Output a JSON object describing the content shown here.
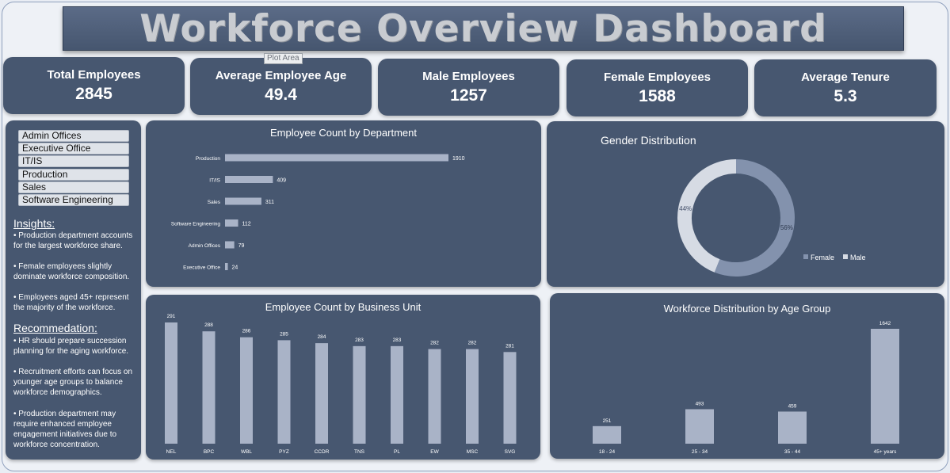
{
  "title": "Workforce Overview Dashboard",
  "tooltip": "Plot Area",
  "kpis": [
    {
      "label": "Total Employees",
      "value": "2845"
    },
    {
      "label": "Average Employee Age",
      "value": "49.4"
    },
    {
      "label": "Male Employees",
      "value": "1257"
    },
    {
      "label": "Female Employees",
      "value": "1588"
    },
    {
      "label": "Average Tenure",
      "value": "5.3"
    }
  ],
  "slicer": {
    "items": [
      "Admin Offices",
      "Executive Office",
      "IT/IS",
      "Production",
      "Sales",
      "Software Engineering"
    ]
  },
  "insights": {
    "heading": "Insights:",
    "bullets": [
      "• Production department accounts for the largest workforce share.",
      "• Female employees slightly dominate workforce composition.",
      "• Employees aged 45+ represent the majority of the workforce."
    ]
  },
  "recommendation": {
    "heading": "Recommedation:",
    "bullets": [
      "• HR should prepare succession planning for the aging workforce.",
      "• Recruitment efforts can focus on younger age groups to balance workforce demographics.",
      "• Production department may require enhanced employee engagement initiatives due to workforce concentration."
    ]
  },
  "colors": {
    "panel": "#475770",
    "bar": "#a9b3c7",
    "female": "#8392ad",
    "male": "#d6dbe4"
  },
  "chart_data": [
    {
      "type": "bar",
      "orientation": "horizontal",
      "title": "Employee Count by Department",
      "categories": [
        "Production",
        "IT/IS",
        "Sales",
        "Software Engineering",
        "Admin Offices",
        "Executive Office"
      ],
      "values": [
        1910,
        409,
        311,
        112,
        79,
        24
      ]
    },
    {
      "type": "pie",
      "variant": "donut",
      "title": "Gender Distribution",
      "categories": [
        "Female",
        "Male"
      ],
      "values": [
        56,
        44
      ],
      "labels": [
        "56%",
        "44%"
      ],
      "legend": "bottom-right"
    },
    {
      "type": "bar",
      "title": "Employee Count by Business Unit",
      "categories": [
        "NEL",
        "BPC",
        "WBL",
        "PYZ",
        "CCDR",
        "TNS",
        "PL",
        "EW",
        "MSC",
        "SVG"
      ],
      "values": [
        291,
        288,
        286,
        285,
        284,
        283,
        283,
        282,
        282,
        281
      ]
    },
    {
      "type": "bar",
      "title": "Workforce Distribution by Age Group",
      "categories": [
        "18 - 24",
        "25 - 34",
        "35 - 44",
        "45+ years"
      ],
      "values": [
        251,
        493,
        459,
        1642
      ]
    }
  ]
}
